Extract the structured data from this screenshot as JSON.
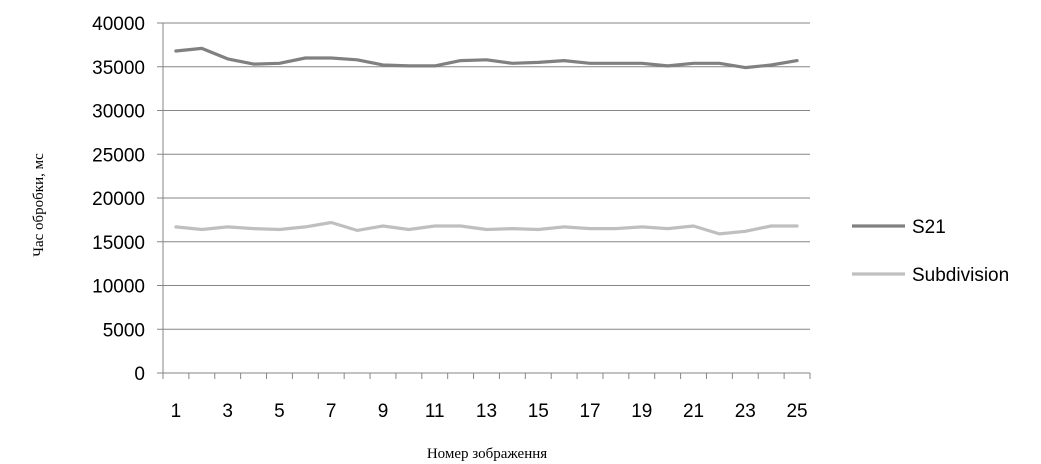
{
  "chart_data": {
    "type": "line",
    "title": "",
    "xlabel": "Номер зображення",
    "ylabel": "Час обробки, мс",
    "x": [
      1,
      2,
      3,
      4,
      5,
      6,
      7,
      8,
      9,
      10,
      11,
      12,
      13,
      14,
      15,
      16,
      17,
      18,
      19,
      20,
      21,
      22,
      23,
      24,
      25
    ],
    "x_tick_labels": [
      "1",
      "3",
      "5",
      "7",
      "9",
      "11",
      "13",
      "15",
      "17",
      "19",
      "21",
      "23",
      "25"
    ],
    "ylim": [
      0,
      40000
    ],
    "y_tick_labels": [
      "0",
      "5000",
      "10000",
      "15000",
      "20000",
      "25000",
      "30000",
      "35000",
      "40000"
    ],
    "grid": true,
    "legend_position": "right",
    "series": [
      {
        "name": "S21",
        "color": "#808080",
        "values": [
          36800,
          37100,
          35900,
          35300,
          35400,
          36000,
          36000,
          35800,
          35200,
          35100,
          35100,
          35700,
          35800,
          35400,
          35500,
          35700,
          35400,
          35400,
          35400,
          35100,
          35400,
          35400,
          34900,
          35200,
          35700
        ]
      },
      {
        "name": "Subdivision",
        "color": "#BFBFBF",
        "values": [
          16700,
          16400,
          16700,
          16500,
          16400,
          16700,
          17200,
          16300,
          16800,
          16400,
          16800,
          16800,
          16400,
          16500,
          16400,
          16700,
          16500,
          16500,
          16700,
          16500,
          16800,
          15900,
          16200,
          16800,
          16800
        ]
      }
    ]
  }
}
